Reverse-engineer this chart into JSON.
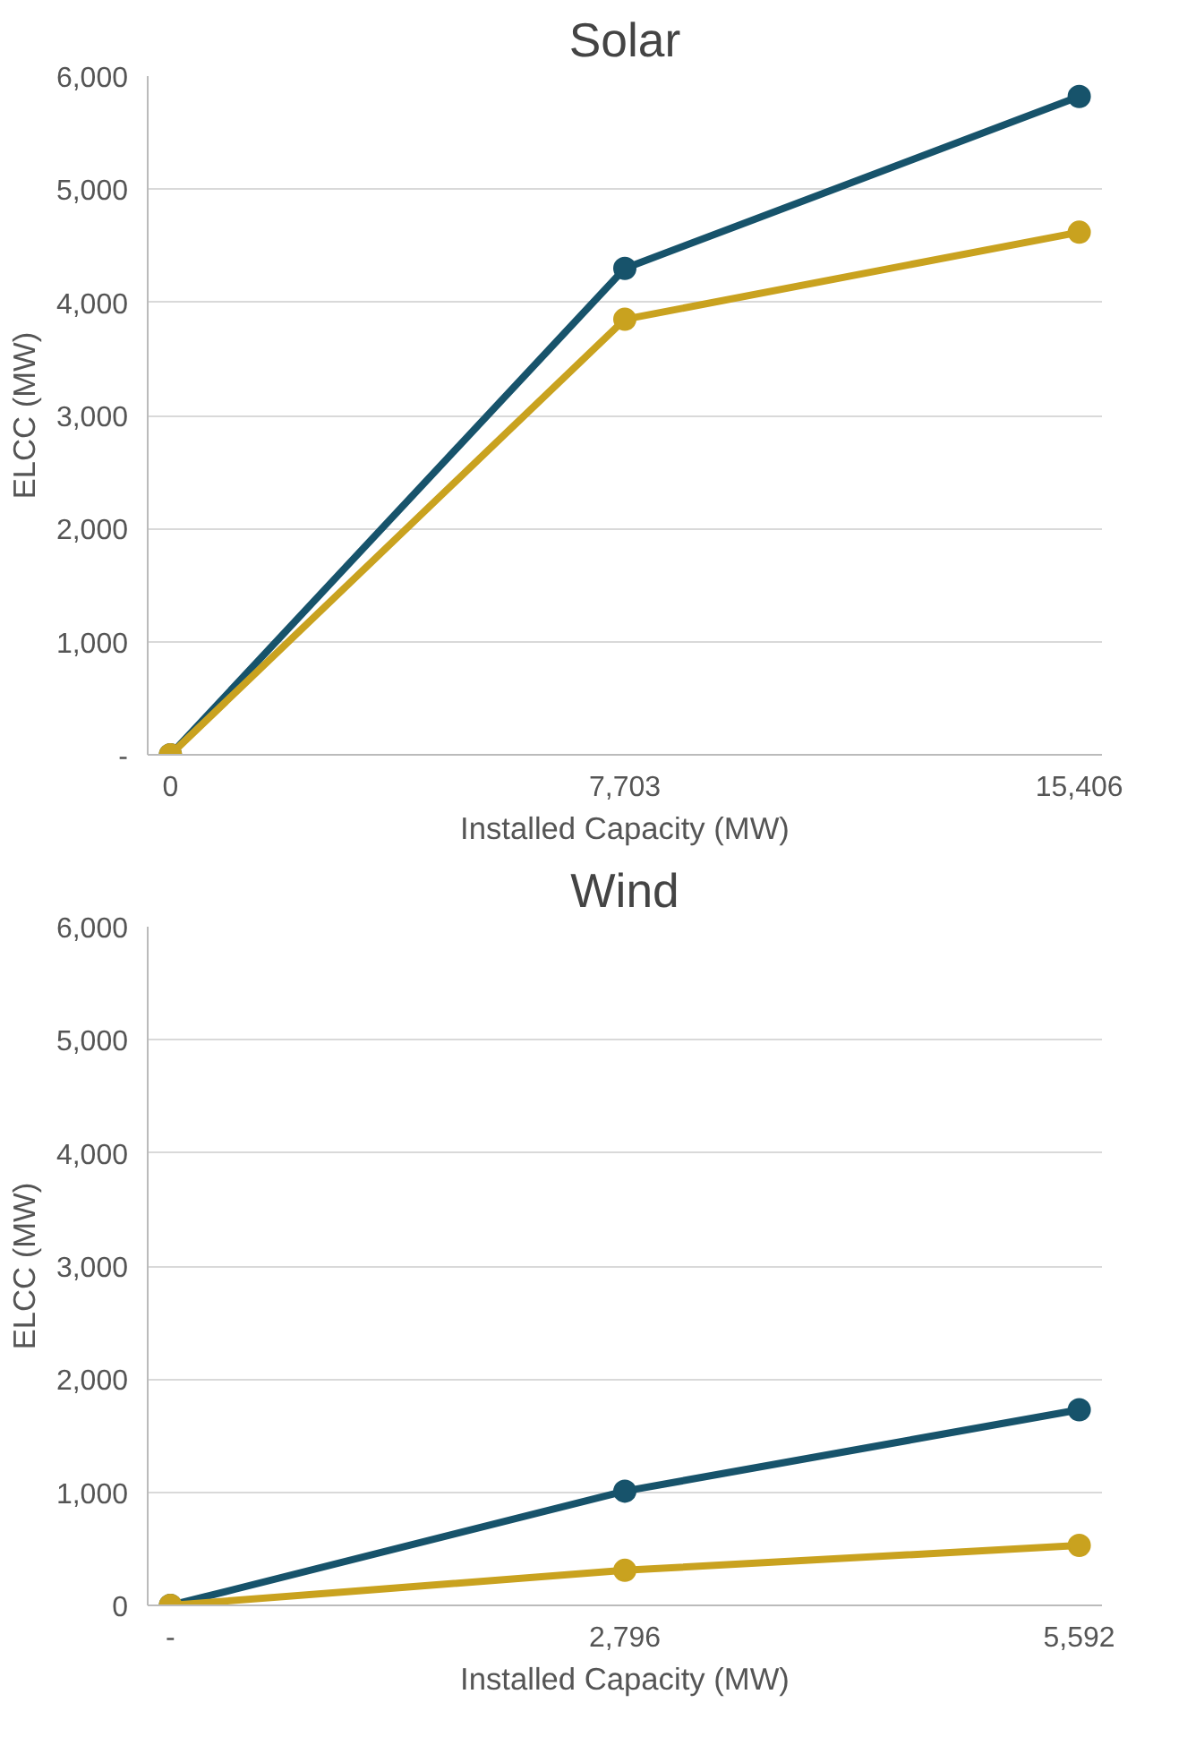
{
  "chart_data": [
    {
      "type": "line",
      "title": "Solar",
      "xlabel": "Installed Capacity (MW)",
      "ylabel": "ELCC (MW)",
      "categories": [
        "0",
        "7,703",
        "15,406"
      ],
      "ylim": [
        0,
        6000
      ],
      "yticks": [
        {
          "value": 0,
          "label": "-"
        },
        {
          "value": 1000,
          "label": "1,000"
        },
        {
          "value": 2000,
          "label": "2,000"
        },
        {
          "value": 3000,
          "label": "3,000"
        },
        {
          "value": 4000,
          "label": "4,000"
        },
        {
          "value": 5000,
          "label": "5,000"
        },
        {
          "value": 6000,
          "label": "6,000"
        }
      ],
      "grid": "y",
      "marker": "circle",
      "line_style": "solid",
      "series": [
        {
          "color": "#17536b",
          "values": [
            0,
            4300,
            5820
          ]
        },
        {
          "color": "#c9a21f",
          "values": [
            0,
            3850,
            4620
          ]
        }
      ]
    },
    {
      "type": "line",
      "title": "Wind",
      "xlabel": "Installed Capacity (MW)",
      "ylabel": "ELCC (MW)",
      "categories": [
        "-",
        "2,796",
        "5,592"
      ],
      "ylim": [
        0,
        6000
      ],
      "yticks": [
        0,
        {
          "value": 1000,
          "label": "1,000"
        },
        {
          "value": 2000,
          "label": "2,000"
        },
        {
          "value": 3000,
          "label": "3,000"
        },
        {
          "value": 4000,
          "label": "4,000"
        },
        {
          "value": 5000,
          "label": "5,000"
        },
        {
          "value": 6000,
          "label": "6,000"
        }
      ],
      "grid": "y",
      "marker": "circle",
      "line_style": "solid",
      "series": [
        {
          "color": "#17536b",
          "values": [
            0,
            1010,
            1730
          ]
        },
        {
          "color": "#c9a21f",
          "values": [
            0,
            310,
            530
          ]
        }
      ]
    }
  ]
}
